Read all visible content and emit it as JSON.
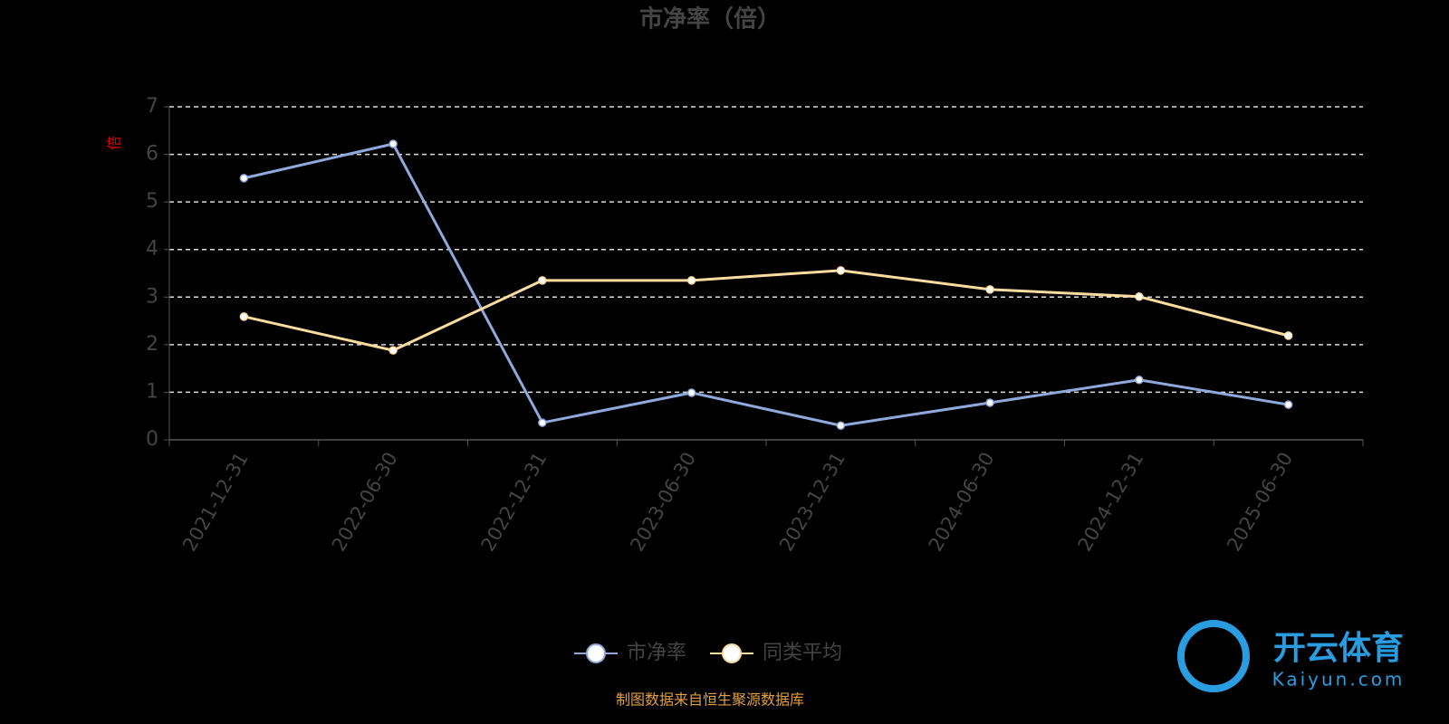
{
  "chart_data": {
    "type": "line",
    "title": "市净率（倍）",
    "y_axis_label": "倍",
    "categories": [
      "2021-12-31",
      "2022-06-30",
      "2022-12-31",
      "2023-06-30",
      "2023-12-31",
      "2024-06-30",
      "2024-12-31",
      "2025-06-30"
    ],
    "series": [
      {
        "name": "市净率",
        "color": "#8fa9dc",
        "values": [
          5.5,
          6.22,
          0.36,
          0.99,
          0.3,
          0.78,
          1.26,
          0.74
        ]
      },
      {
        "name": "同类平均",
        "color": "#fbdca0",
        "values": [
          2.59,
          1.88,
          3.35,
          3.35,
          3.56,
          3.16,
          3.01,
          2.19
        ]
      }
    ],
    "ylim": [
      0,
      7
    ],
    "yticks": [
      0,
      1,
      2,
      3,
      4,
      5,
      6,
      7
    ],
    "grid": true,
    "source": "制图数据来自恒生聚源数据库",
    "watermark": {
      "brand": "开云体育",
      "site": "Kaiyun.com"
    }
  }
}
